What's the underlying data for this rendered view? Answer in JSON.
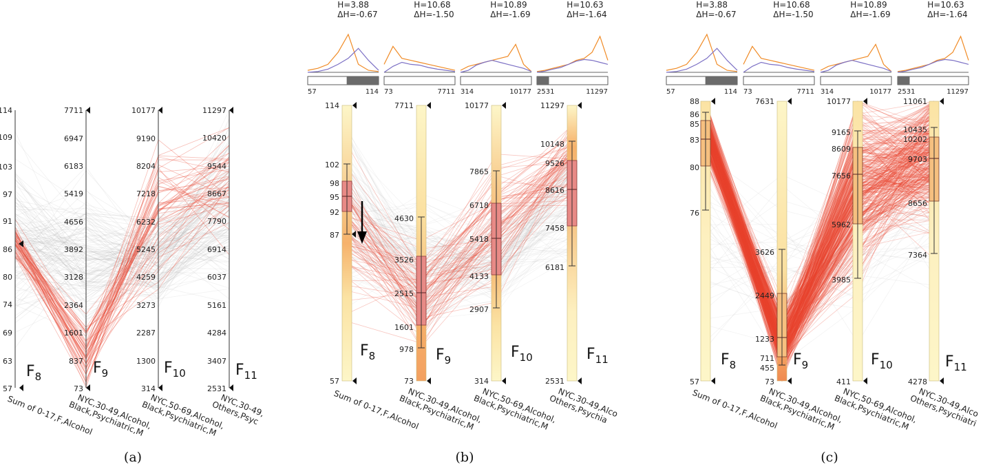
{
  "panels": [
    {
      "id": "a",
      "caption": "(a)",
      "axes": [
        {
          "code": "8",
          "name": "Sum of 0-17,F,Alcohol",
          "ticks": [
            "114",
            "109",
            "103",
            "97",
            "91",
            "86",
            "80",
            "74",
            "69",
            "63",
            "57"
          ],
          "marker": "86"
        },
        {
          "code": "9",
          "name": "NYC,30-49,Alcohol,|Black,Psychiatric,M",
          "ticks": [
            "7711",
            "6947",
            "6183",
            "5419",
            "4656",
            "3892",
            "3128",
            "2364",
            "1601",
            "837",
            "73"
          ],
          "marker": "7711"
        },
        {
          "code": "10",
          "name": "NYC,50-69,Alcohol,|Black,Psychiatric,M",
          "ticks": [
            "10177",
            "9190",
            "8204",
            "7218",
            "6232",
            "5245",
            "4259",
            "3273",
            "2287",
            "1300",
            "314"
          ],
          "marker": "10177"
        },
        {
          "code": "11",
          "name": "NYC,30-49,|Others,Psyc",
          "ticks": [
            "11297",
            "10420",
            "9544",
            "8667",
            "7790",
            "6914",
            "6037",
            "5161",
            "4284",
            "3407",
            "2531"
          ],
          "marker": "11297"
        }
      ]
    },
    {
      "id": "b",
      "caption": "(b)",
      "axes": [
        {
          "code": "8",
          "name": "Sum of 0-17,F,Alcohol",
          "H": "H=3.88",
          "dH": "ΔH=-0.67",
          "range_min": "57",
          "range_max": "114",
          "ticks_top": "114",
          "ticks_bottom": "57",
          "box_labels": [
            "102",
            "98",
            "95",
            "92",
            "87"
          ],
          "marker": "87"
        },
        {
          "code": "9",
          "name": "NYC,30-49,Alcohol,|Black,Psychiatric,M",
          "H": "H=10.68",
          "dH": "ΔH=-1.50",
          "range_min": "73",
          "range_max": "7711",
          "ticks_top": "7711",
          "ticks_bottom": "73",
          "box_labels": [
            "4630",
            "3526",
            "2515",
            "1601",
            "978"
          ],
          "marker": "7711"
        },
        {
          "code": "10",
          "name": "NYC,50-69,Alcohol,|Black,Psychiatric,M",
          "H": "H=10.89",
          "dH": "ΔH=-1.69",
          "range_min": "314",
          "range_max": "10177",
          "ticks_top": "10177",
          "ticks_bottom": "314",
          "box_labels": [
            "7865",
            "6718",
            "5418",
            "4133",
            "2907"
          ],
          "marker": "10177"
        },
        {
          "code": "11",
          "name": "NYC,30-49,Alco|Others,Psychia",
          "H": "H=10.63",
          "dH": "ΔH=-1.64",
          "range_min": "2531",
          "range_max": "11297",
          "ticks_top": "11297",
          "ticks_bottom": "2531",
          "box_labels": [
            "10148",
            "9526",
            "8616",
            "7458",
            "6181"
          ],
          "marker": "11297"
        }
      ]
    },
    {
      "id": "c",
      "caption": "(c)",
      "axes": [
        {
          "code": "8",
          "name": "Sum of 0-17,F,Alcohol",
          "H": "H=3.88",
          "dH": "ΔH=-0.67",
          "range_min": "57",
          "range_max": "114",
          "ticks_top": "88",
          "ticks_bottom": "57",
          "box_labels": [
            "86",
            "85",
            "83",
            "80",
            "76"
          ],
          "marker": "88"
        },
        {
          "code": "9",
          "name": "NYC,30-49,Alcohol,|Black,Psychiatric,M",
          "H": "H=10.68",
          "dH": "ΔH=-1.50",
          "range_min": "73",
          "range_max": "7711",
          "ticks_top": "7631",
          "ticks_bottom": "73",
          "box_labels": [
            "3626",
            "2449",
            "1233",
            "711",
            "455"
          ],
          "marker": "7631"
        },
        {
          "code": "10",
          "name": "NYC,50-69,Alcohol,|Black,Psychiatric,M",
          "H": "H=10.89",
          "dH": "ΔH=-1.69",
          "range_min": "314",
          "range_max": "10177",
          "ticks_top": "10177",
          "ticks_bottom": "411",
          "box_labels": [
            "9165",
            "8609",
            "7656",
            "5962",
            "3985"
          ],
          "marker": "10177"
        },
        {
          "code": "11",
          "name": "NYC,30-49,Alco|Others,Psychiatri",
          "H": "H=10.63",
          "dH": "ΔH=-1.64",
          "range_min": "2531",
          "range_max": "11297",
          "ticks_top": "11061",
          "ticks_bottom": "4278",
          "box_labels": [
            "10435",
            "10202",
            "9703",
            "8656",
            "7364"
          ],
          "marker": "11061"
        }
      ]
    }
  ],
  "colors": {
    "highlight_lines": "#e8432e",
    "context_lines": "#b0b0b0",
    "axis": "#555555",
    "density_light": "#fdf6c8",
    "density_mid": "#f6b26b",
    "density_high": "#e8826e",
    "hist_orange": "#f08a24",
    "hist_purple": "#7b6fc4",
    "range_bar_fill": "#6b6b6b"
  },
  "chart_data": [
    {
      "type": "parallel_coordinates",
      "panel": "(a)",
      "axes": [
        "Sum of 0-17,F,Alcohol",
        "NYC,30-49,Alcohol,Black,Psychiatric,M",
        "NYC,50-69,Alcohol,Black,Psychiatric,M",
        "NYC,30-49,Others,Psyc"
      ],
      "axis_ranges": [
        [
          57,
          114
        ],
        [
          73,
          7711
        ],
        [
          314,
          10177
        ],
        [
          2531,
          11297
        ]
      ],
      "selection": {
        "axis": "Sum of 0-17,F,Alcohol",
        "at": 86
      }
    },
    {
      "type": "parallel_coordinates",
      "panel": "(b)",
      "axes": [
        "Sum of 0-17,F,Alcohol",
        "NYC,30-49,Alcohol,Black,Psychiatric,M",
        "NYC,50-69,Alcohol,Black,Psychiatric,M",
        "NYC,30-49,Alco,Others,Psychia"
      ],
      "axis_ranges": [
        [
          57,
          114
        ],
        [
          73,
          7711
        ],
        [
          314,
          10177
        ],
        [
          2531,
          11297
        ]
      ],
      "entropy": [
        {
          "H": 3.88,
          "dH": -0.67
        },
        {
          "H": 10.68,
          "dH": -1.5
        },
        {
          "H": 10.89,
          "dH": -1.69
        },
        {
          "H": 10.63,
          "dH": -1.64
        }
      ],
      "boxplots": [
        {
          "whisker_high": 102,
          "q3": 98,
          "median": 95,
          "q1": 92,
          "whisker_low": 87
        },
        {
          "whisker_high": 4630,
          "q3": 3526,
          "median": 2515,
          "q1": 1601,
          "whisker_low": 978
        },
        {
          "whisker_high": 7865,
          "q3": 6718,
          "median": 5418,
          "q1": 4133,
          "whisker_low": 2907
        },
        {
          "whisker_high": 10148,
          "q3": 9526,
          "median": 8616,
          "q1": 7458,
          "whisker_low": 6181
        }
      ]
    },
    {
      "type": "parallel_coordinates",
      "panel": "(c)",
      "axes": [
        "Sum of 0-17,F,Alcohol",
        "NYC,30-49,Alcohol,Black,Psychiatric,M",
        "NYC,50-69,Alcohol,Black,Psychiatric,M",
        "NYC,30-49,Alco,Others,Psychiatri"
      ],
      "axis_ranges": [
        [
          57,
          88
        ],
        [
          73,
          7631
        ],
        [
          411,
          10177
        ],
        [
          4278,
          11061
        ]
      ],
      "entropy": [
        {
          "H": 3.88,
          "dH": -0.67
        },
        {
          "H": 10.68,
          "dH": -1.5
        },
        {
          "H": 10.89,
          "dH": -1.69
        },
        {
          "H": 10.63,
          "dH": -1.64
        }
      ],
      "boxplots": [
        {
          "whisker_high": 86,
          "q3": 85,
          "median": 83,
          "q1": 80,
          "whisker_low": 76
        },
        {
          "whisker_high": 3626,
          "q3": 2449,
          "median": 1233,
          "q1": 711,
          "whisker_low": 455
        },
        {
          "whisker_high": 9165,
          "q3": 8609,
          "median": 7656,
          "q1": 5962,
          "whisker_low": 3985
        },
        {
          "whisker_high": 10435,
          "q3": 10202,
          "median": 9703,
          "q1": 8656,
          "whisker_low": 7364
        }
      ]
    }
  ]
}
